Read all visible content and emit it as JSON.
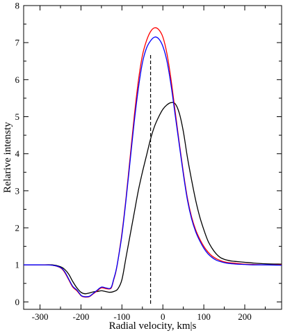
{
  "chart_data": {
    "type": "line",
    "title": "",
    "xlabel": "Radial velocity, km|s",
    "ylabel": "Relarive intensty",
    "xlim": [
      -340,
      290
    ],
    "ylim": [
      -0.2,
      8
    ],
    "xticks": [
      -300,
      -200,
      -100,
      0,
      100,
      200
    ],
    "yticks": [
      0,
      1,
      2,
      3,
      4,
      5,
      6,
      7,
      8
    ],
    "xtick_labels": [
      "-300",
      "-200",
      "-100",
      "0",
      "100",
      "200"
    ],
    "ytick_labels": [
      "0",
      "1",
      "2",
      "3",
      "4",
      "5",
      "6",
      "7",
      "8"
    ],
    "grid": false,
    "legend": "none",
    "series": [
      {
        "color": "#ff0000",
        "x": [
          -340,
          -300,
          -270,
          -250,
          -240,
          -230,
          -220,
          -210,
          -200,
          -195,
          -190,
          -180,
          -170,
          -160,
          -150,
          -140,
          -130,
          -125,
          -120,
          -115,
          -110,
          -100,
          -90,
          -80,
          -70,
          -60,
          -50,
          -40,
          -30,
          -20,
          -10,
          0,
          10,
          20,
          30,
          40,
          50,
          60,
          70,
          80,
          90,
          100,
          110,
          120,
          130,
          140,
          150,
          160,
          170,
          180,
          200,
          220,
          250,
          290
        ],
        "y": [
          1.0,
          1.0,
          0.99,
          0.92,
          0.8,
          0.6,
          0.4,
          0.3,
          0.17,
          0.14,
          0.13,
          0.14,
          0.22,
          0.3,
          0.38,
          0.36,
          0.35,
          0.4,
          0.6,
          0.8,
          1.1,
          1.85,
          2.8,
          3.9,
          5.0,
          5.95,
          6.65,
          7.05,
          7.3,
          7.4,
          7.35,
          7.15,
          6.7,
          6.0,
          5.15,
          4.3,
          3.5,
          2.8,
          2.3,
          1.95,
          1.7,
          1.5,
          1.35,
          1.24,
          1.17,
          1.12,
          1.08,
          1.06,
          1.05,
          1.04,
          1.02,
          1.01,
          1.0,
          1.0
        ]
      },
      {
        "color": "#0000ff",
        "x": [
          -340,
          -300,
          -270,
          -250,
          -240,
          -230,
          -220,
          -210,
          -200,
          -195,
          -190,
          -180,
          -170,
          -160,
          -150,
          -140,
          -130,
          -125,
          -120,
          -115,
          -110,
          -100,
          -90,
          -80,
          -70,
          -60,
          -50,
          -40,
          -30,
          -20,
          -10,
          0,
          10,
          20,
          30,
          40,
          50,
          60,
          70,
          80,
          90,
          100,
          110,
          120,
          130,
          140,
          150,
          160,
          170,
          180,
          200,
          220,
          250,
          290
        ],
        "y": [
          1.0,
          1.0,
          0.99,
          0.93,
          0.82,
          0.62,
          0.42,
          0.32,
          0.18,
          0.15,
          0.14,
          0.15,
          0.23,
          0.32,
          0.4,
          0.38,
          0.36,
          0.42,
          0.62,
          0.82,
          1.1,
          1.8,
          2.75,
          3.8,
          4.85,
          5.75,
          6.45,
          6.85,
          7.05,
          7.15,
          7.1,
          6.9,
          6.5,
          5.85,
          5.05,
          4.25,
          3.45,
          2.75,
          2.25,
          1.9,
          1.65,
          1.45,
          1.3,
          1.2,
          1.13,
          1.09,
          1.06,
          1.04,
          1.03,
          1.02,
          1.01,
          1.0,
          1.0,
          0.99
        ]
      },
      {
        "color": "#000000",
        "x": [
          -340,
          -300,
          -270,
          -250,
          -240,
          -230,
          -220,
          -210,
          -200,
          -190,
          -180,
          -170,
          -160,
          -150,
          -140,
          -130,
          -120,
          -110,
          -100,
          -90,
          -80,
          -70,
          -60,
          -50,
          -40,
          -30,
          -20,
          -10,
          0,
          10,
          20,
          30,
          40,
          50,
          60,
          70,
          80,
          90,
          100,
          110,
          120,
          130,
          140,
          150,
          160,
          170,
          180,
          200,
          220,
          250,
          290
        ],
        "y": [
          1.0,
          1.0,
          1.0,
          0.95,
          0.88,
          0.75,
          0.55,
          0.38,
          0.26,
          0.22,
          0.24,
          0.27,
          0.28,
          0.3,
          0.28,
          0.26,
          0.28,
          0.35,
          0.6,
          1.2,
          1.8,
          2.4,
          3.0,
          3.5,
          3.95,
          4.4,
          4.75,
          5.0,
          5.2,
          5.32,
          5.38,
          5.35,
          5.1,
          4.6,
          3.9,
          3.3,
          2.75,
          2.3,
          1.95,
          1.65,
          1.45,
          1.3,
          1.2,
          1.15,
          1.12,
          1.1,
          1.09,
          1.07,
          1.05,
          1.03,
          1.02
        ]
      }
    ],
    "annotations": [
      {
        "kind": "dashed-vertical-line",
        "color": "#000000",
        "x": -30,
        "y_from": -0.05,
        "y_to": 6.7
      }
    ]
  }
}
